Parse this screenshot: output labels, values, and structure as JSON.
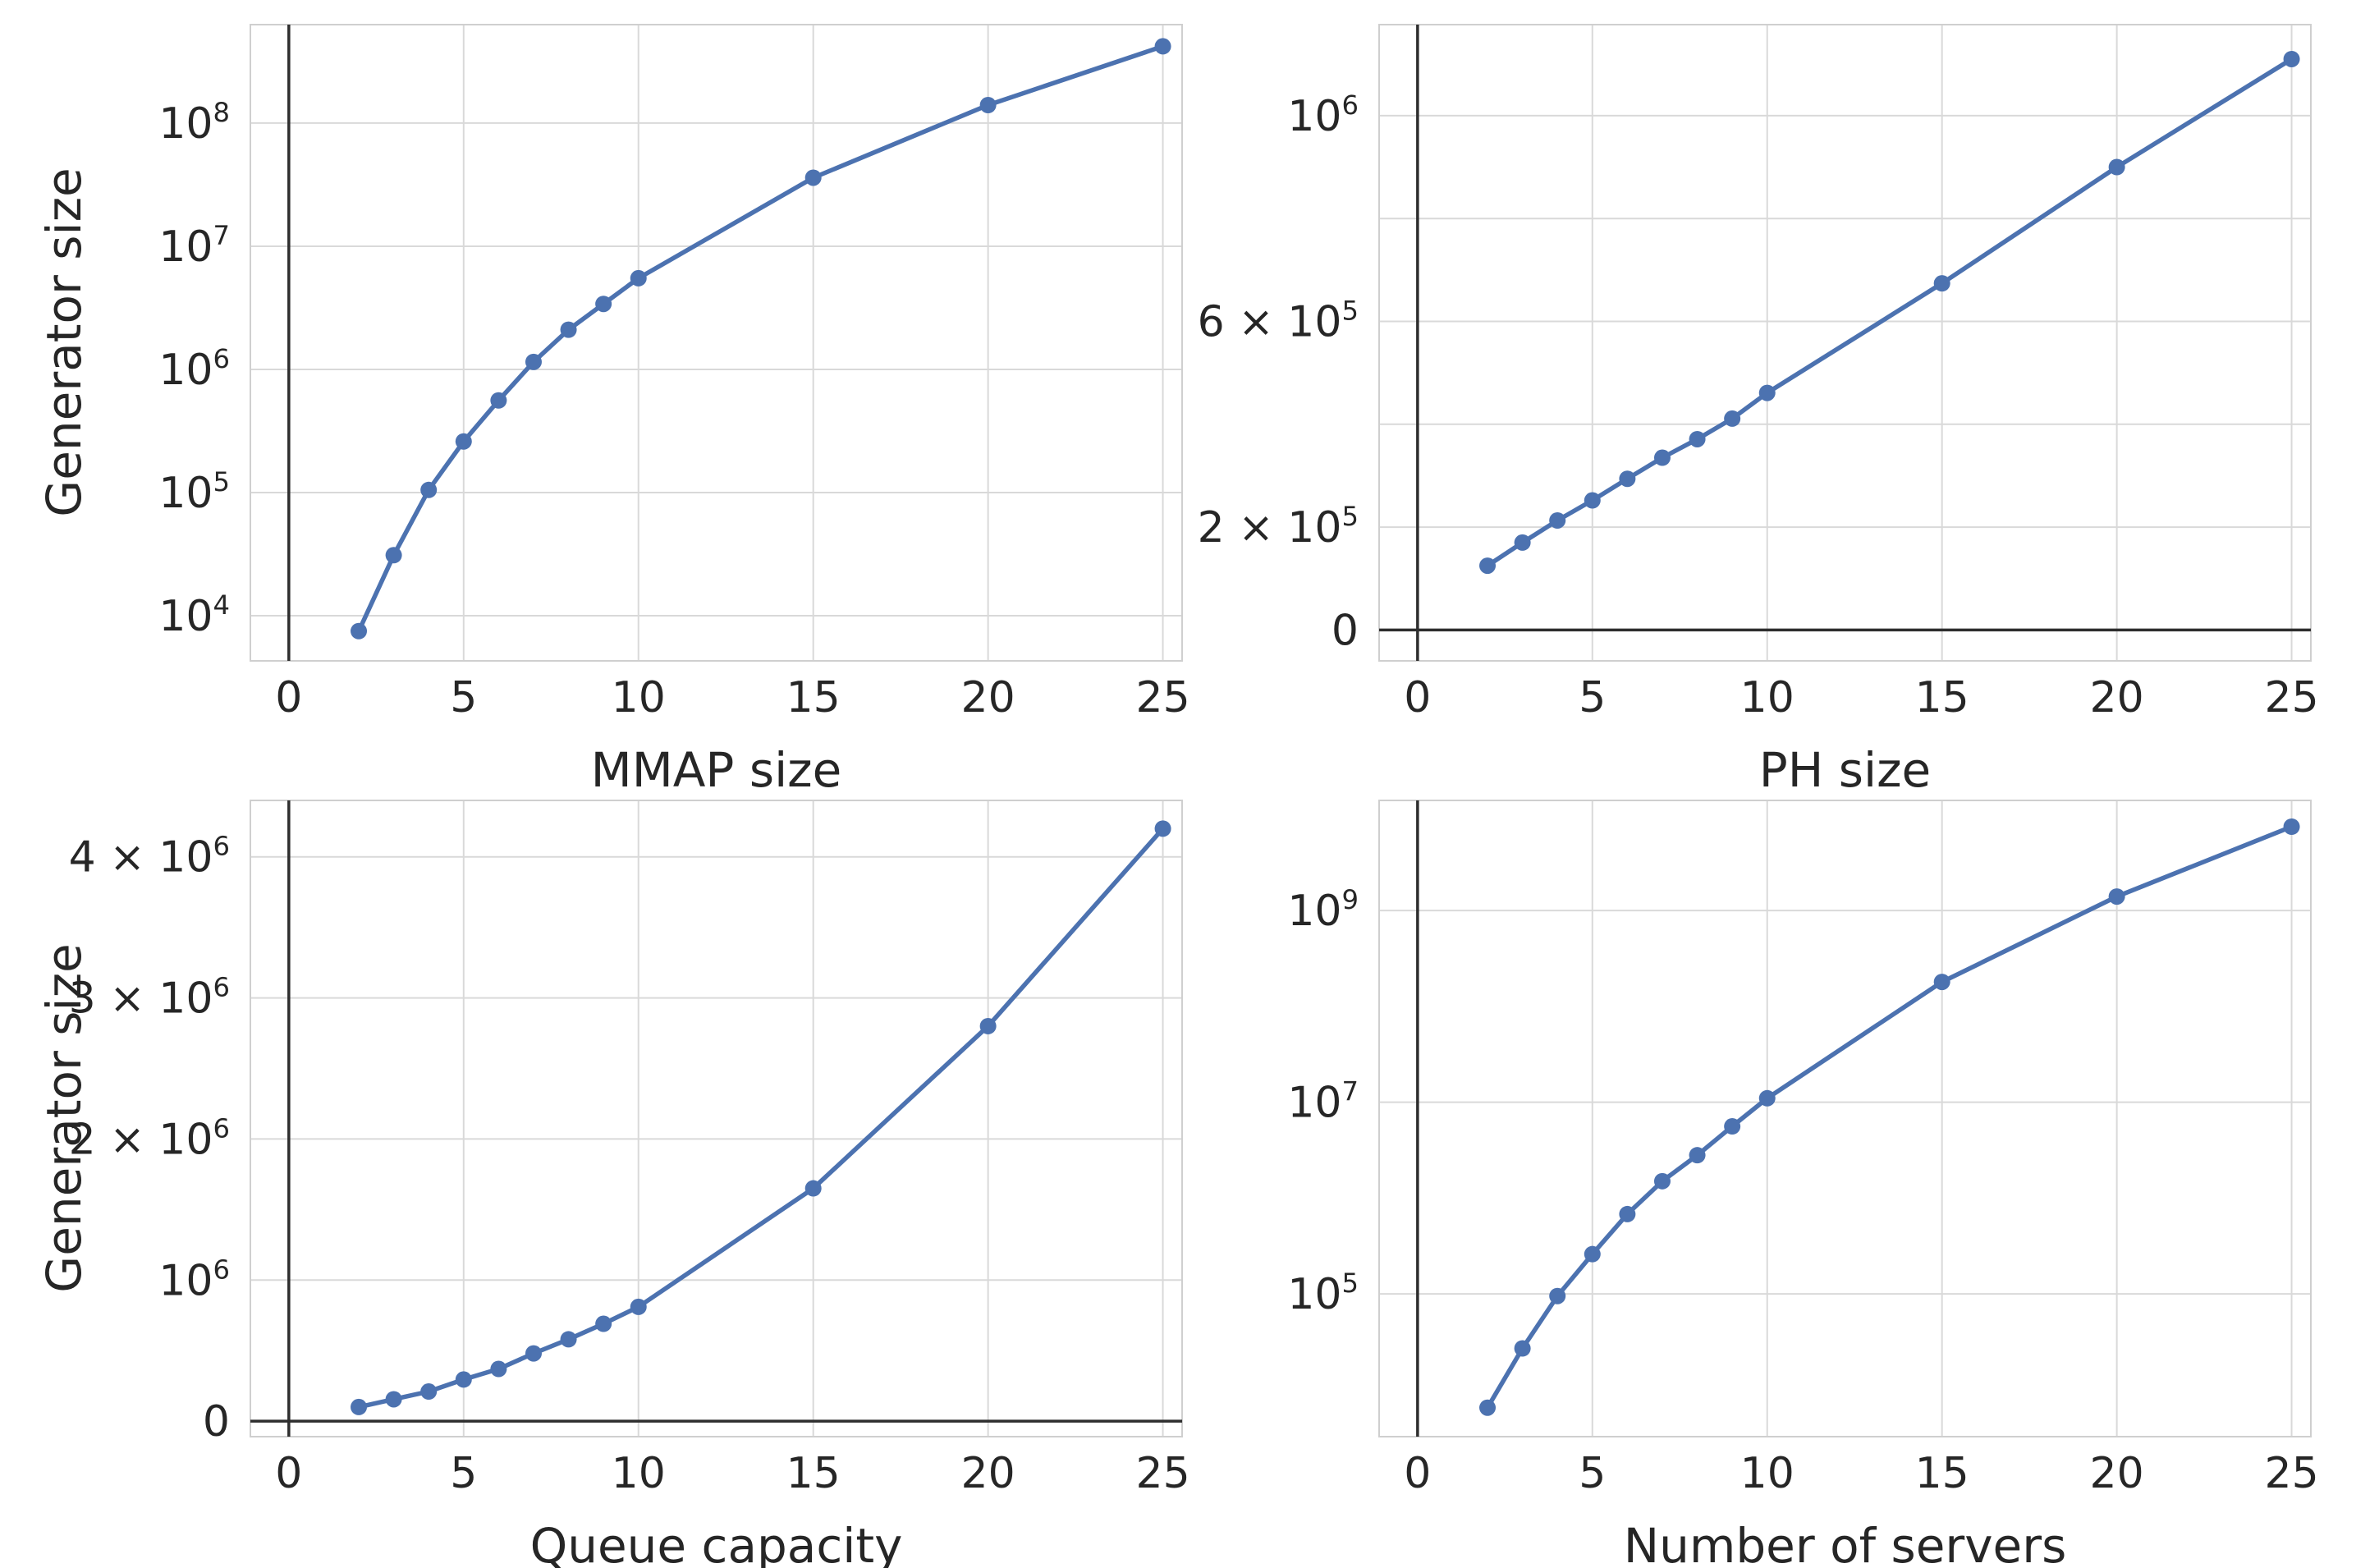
{
  "figure": {
    "title": "",
    "background": "#ffffff",
    "grid": true,
    "legend": "none",
    "rows": 2,
    "cols": 2
  },
  "colors": {
    "series_line": "#4C72B0",
    "marker": "#4C72B0",
    "gridline": "#D9D9D9",
    "spine": "#CFCFCF",
    "zero_line": "#2E2E2E",
    "text": "#262626"
  },
  "style": {
    "line_width": 5.5,
    "marker_radius": 10,
    "zero_line_width": 3.5,
    "gridline_width": 2
  },
  "chart_data": [
    {
      "type": "line",
      "title": "",
      "xlabel": "MMAP size",
      "ylabel": "Generator size",
      "yscale": "log",
      "xlim": [
        -1.1,
        25.55
      ],
      "ylim": [
        4300,
        630000000
      ],
      "xticks": [
        0,
        5,
        10,
        15,
        20,
        25
      ],
      "xtick_labels": [
        "0",
        "5",
        "10",
        "15",
        "20",
        "25"
      ],
      "yticks": [
        {
          "v": 10000,
          "label": "10^4"
        },
        {
          "v": 100000,
          "label": "10^5"
        },
        {
          "v": 1000000,
          "label": "10^6"
        },
        {
          "v": 10000000,
          "label": "10^7"
        },
        {
          "v": 100000000,
          "label": "10^8"
        }
      ],
      "y_minor_gridlines": [],
      "zero_lines": {
        "x": true,
        "y": false
      },
      "x": [
        2,
        3,
        4,
        5,
        6,
        7,
        8,
        9,
        10,
        15,
        20,
        25
      ],
      "y": [
        7500,
        31000,
        105000,
        260000,
        560000,
        1150000,
        2100000,
        3400000,
        5500000,
        36000000,
        140000000,
        420000000
      ]
    },
    {
      "type": "line",
      "title": "",
      "xlabel": "PH size",
      "ylabel": "",
      "yscale": "linear",
      "xlim": [
        -1.1,
        25.55
      ],
      "ylim": [
        -60000,
        1177000
      ],
      "xticks": [
        0,
        5,
        10,
        15,
        20,
        25
      ],
      "xtick_labels": [
        "0",
        "5",
        "10",
        "15",
        "20",
        "25"
      ],
      "yticks": [
        {
          "v": 0,
          "label": "0"
        },
        {
          "v": 200000,
          "label": "2 × 10^5"
        },
        {
          "v": 600000,
          "label": "6 × 10^5"
        },
        {
          "v": 1000000,
          "label": "10^6"
        }
      ],
      "y_minor_gridlines": [
        400000,
        800000
      ],
      "zero_lines": {
        "x": true,
        "y": true
      },
      "x": [
        2,
        3,
        4,
        5,
        6,
        7,
        8,
        9,
        10,
        15,
        20,
        25
      ],
      "y": [
        125000,
        170000,
        213000,
        252000,
        294000,
        335000,
        371000,
        411000,
        461000,
        674000,
        900000,
        1110000
      ]
    },
    {
      "type": "line",
      "title": "",
      "xlabel": "Queue capacity",
      "ylabel": "Generator size",
      "yscale": "linear",
      "xlim": [
        -1.1,
        25.55
      ],
      "ylim": [
        -110000,
        4400000
      ],
      "xticks": [
        0,
        5,
        10,
        15,
        20,
        25
      ],
      "xtick_labels": [
        "0",
        "5",
        "10",
        "15",
        "20",
        "25"
      ],
      "yticks": [
        {
          "v": 0,
          "label": "0"
        },
        {
          "v": 1000000,
          "label": "10^6"
        },
        {
          "v": 2000000,
          "label": "2 × 10^6"
        },
        {
          "v": 3000000,
          "label": "3 × 10^6"
        },
        {
          "v": 4000000,
          "label": "4 × 10^6"
        }
      ],
      "y_minor_gridlines": [],
      "zero_lines": {
        "x": true,
        "y": true
      },
      "x": [
        2,
        3,
        4,
        5,
        6,
        7,
        8,
        9,
        10,
        15,
        20,
        25
      ],
      "y": [
        100000,
        155000,
        210000,
        295000,
        370000,
        480000,
        580000,
        690000,
        810000,
        1650000,
        2800000,
        4200000
      ]
    },
    {
      "type": "line",
      "title": "",
      "xlabel": "Number of servers",
      "ylabel": "",
      "yscale": "log",
      "xlim": [
        -1.1,
        25.55
      ],
      "ylim": [
        3240,
        14100000000
      ],
      "xticks": [
        0,
        5,
        10,
        15,
        20,
        25
      ],
      "xtick_labels": [
        "0",
        "5",
        "10",
        "15",
        "20",
        "25"
      ],
      "yticks": [
        {
          "v": 100000,
          "label": "10^5"
        },
        {
          "v": 10000000,
          "label": "10^7"
        },
        {
          "v": 1000000000,
          "label": "10^9"
        }
      ],
      "y_minor_gridlines": [],
      "zero_lines": {
        "x": true,
        "y": false
      },
      "x": [
        2,
        3,
        4,
        5,
        6,
        7,
        8,
        9,
        10,
        15,
        20,
        25
      ],
      "y": [
        6500,
        27000,
        95000,
        260000,
        680000,
        1500000,
        2800000,
        5600000,
        11000000,
        180000000,
        1400000000,
        7500000000
      ]
    }
  ]
}
